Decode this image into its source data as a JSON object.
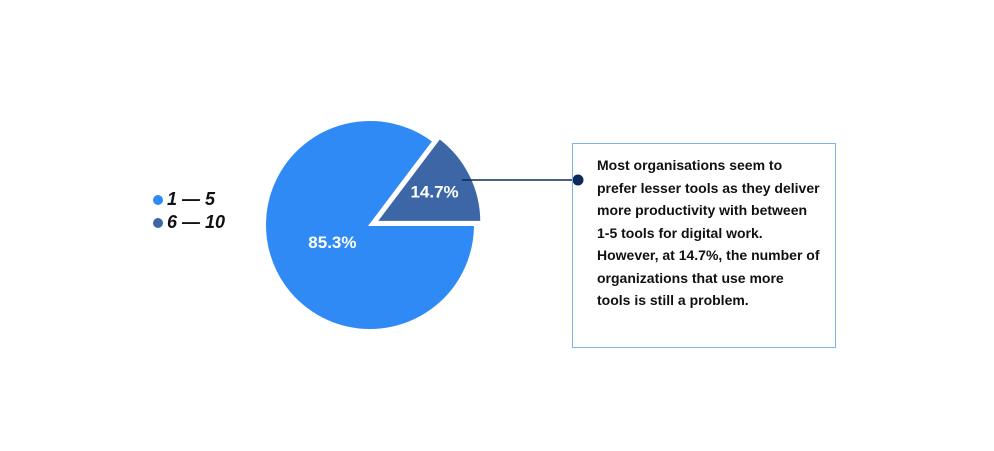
{
  "chart_data": {
    "type": "pie",
    "categories": [
      "1 — 5",
      "6 — 10"
    ],
    "values": [
      85.3,
      14.7
    ],
    "value_labels": [
      "85.3%",
      "14.7%"
    ],
    "colors": [
      "#2f8af5",
      "#3c66a6"
    ],
    "legend": "left",
    "annotation": "Most organisations seem to prefer lesser tools as they deliver more productivity with between 1-5 tools for digital work. However, at 14.7%, the number of organizations that use more tools is still a problem."
  }
}
